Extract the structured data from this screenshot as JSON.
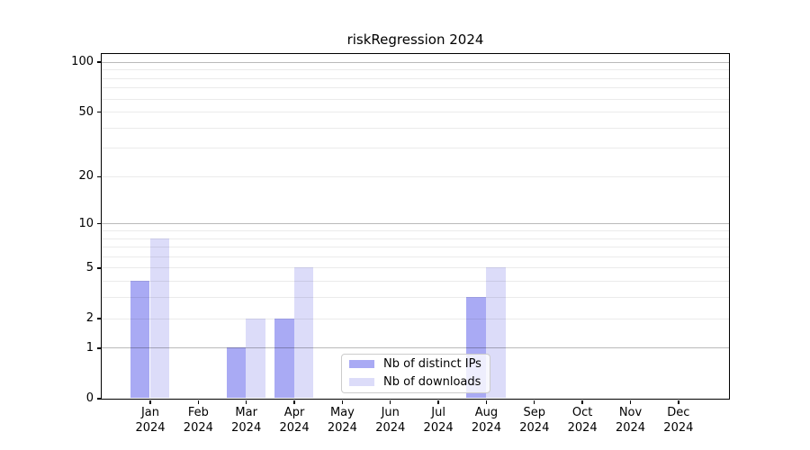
{
  "chart_data": {
    "type": "bar",
    "title": "riskRegression 2024",
    "categories": [
      "Jan",
      "Feb",
      "Mar",
      "Apr",
      "May",
      "Jun",
      "Jul",
      "Aug",
      "Sep",
      "Oct",
      "Nov",
      "Dec"
    ],
    "year_label": "2024",
    "series": [
      {
        "name": "Nb of distinct IPs",
        "color": "#a9aaf4",
        "values": [
          4,
          0,
          1,
          2,
          0,
          0,
          0,
          3,
          0,
          0,
          0,
          0
        ]
      },
      {
        "name": "Nb of downloads",
        "color": "#dcdcf9",
        "values": [
          8,
          0,
          2,
          5,
          0,
          0,
          0,
          5,
          0,
          0,
          0,
          0
        ]
      }
    ],
    "yscale": "log10(1+x)",
    "ylim": [
      0,
      100
    ],
    "yticks": [
      0,
      1,
      2,
      5,
      10,
      20,
      50,
      100
    ],
    "major_gridlines": [
      1,
      10,
      100
    ],
    "minor_gridlines": [
      2,
      3,
      4,
      5,
      6,
      7,
      8,
      9,
      20,
      30,
      40,
      50,
      60,
      70,
      80,
      90
    ],
    "legend_position": "lower center",
    "grid": true
  }
}
